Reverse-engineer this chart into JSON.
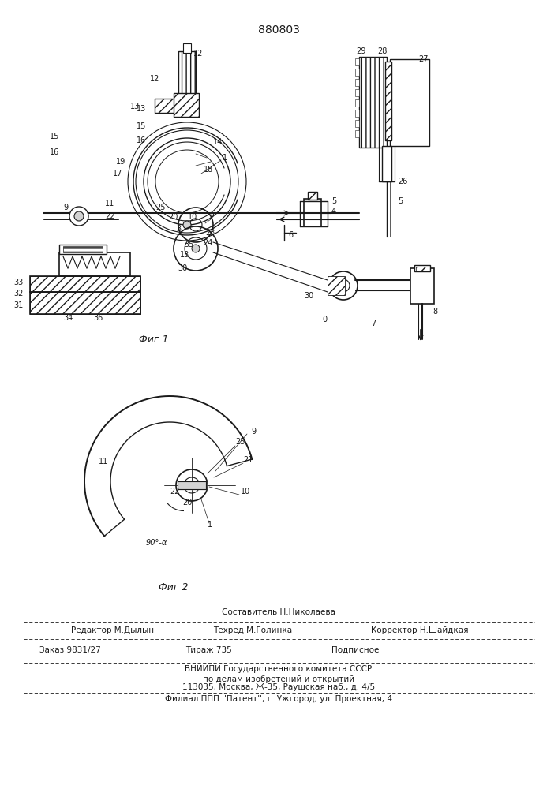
{
  "patent_number": "880803",
  "fig1_label": "Фиг 1",
  "fig2_label": "Фиг 2",
  "footer_line1": "Составитель Н.Николаева",
  "footer_line2_left": "Редактор М.Дылын",
  "footer_line2_mid": "Техред М.Голинка",
  "footer_line2_right": "Корректор Н.Шайдкая",
  "footer_line3_left": "Заказ 9831/27",
  "footer_line3_mid": "Тираж 735",
  "footer_line3_right": "Подписное",
  "footer_line4": "ВНИИПИ Государственного комитета СССР",
  "footer_line5": "по делам изобретений и открытий",
  "footer_line6": "113035, Москва, Ж-35, Раушская наб., д. 4/5",
  "footer_line7": "Филиал ППП ''Патент'', г. Ужгород, ул. Проектная, 4",
  "bg_color": "#ffffff",
  "line_color": "#1a1a1a"
}
